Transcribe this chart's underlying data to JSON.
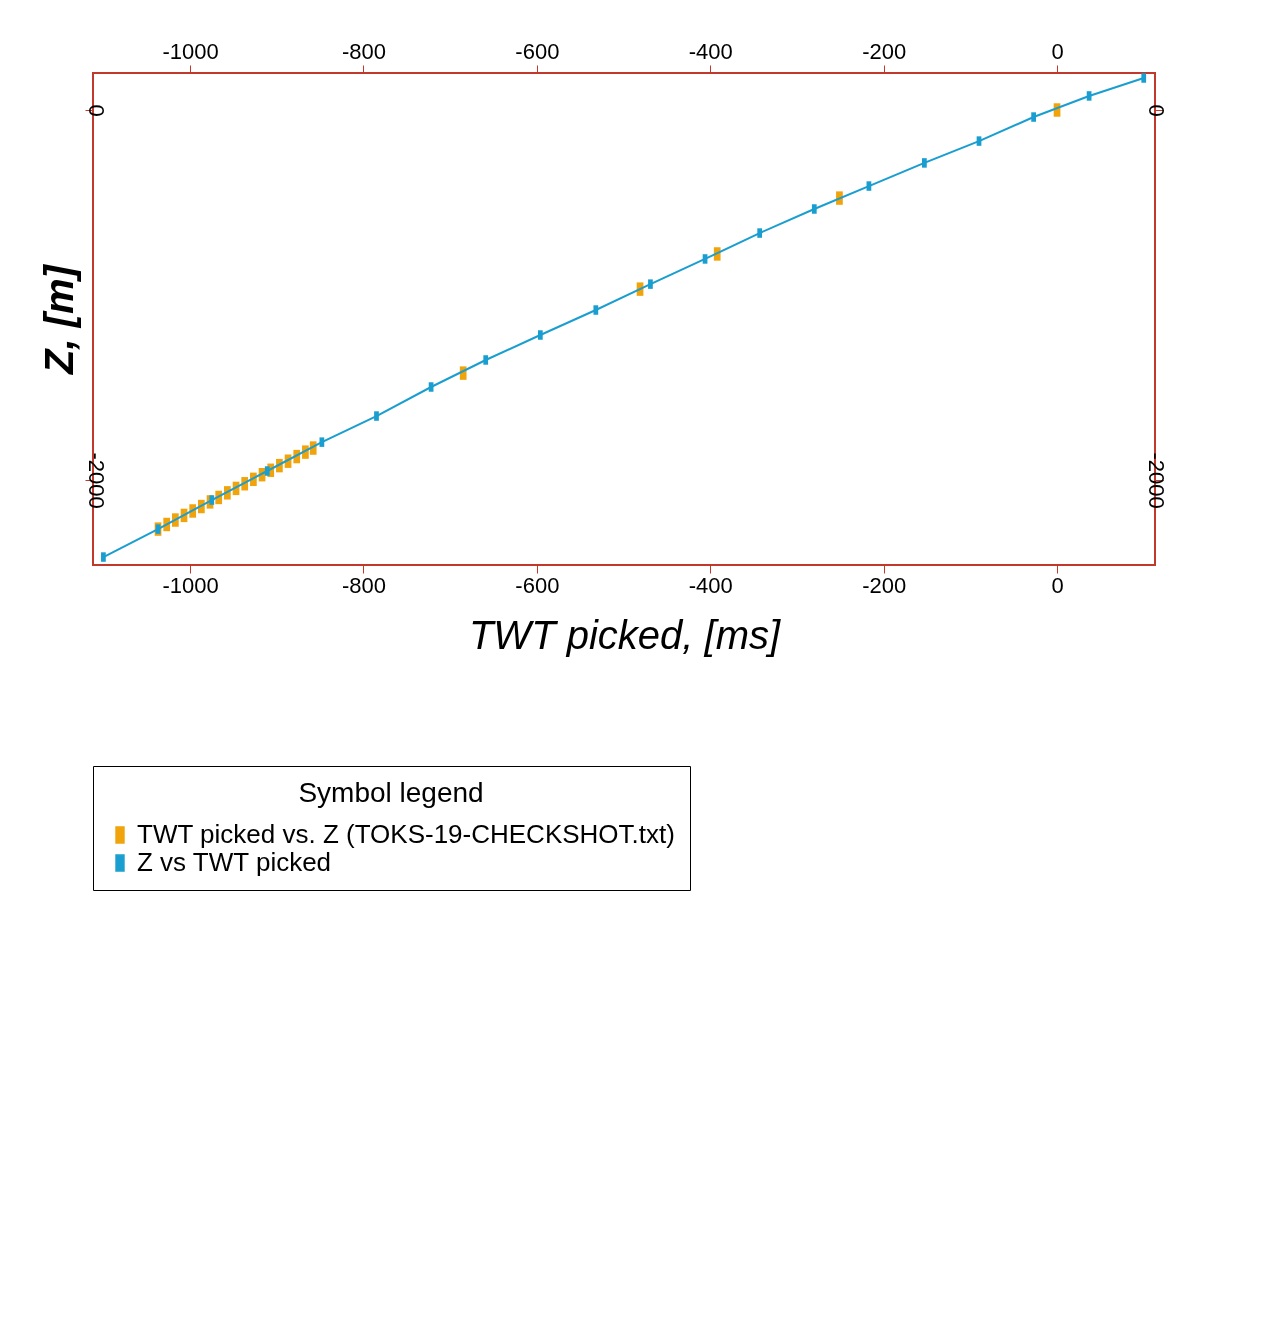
{
  "chart_data": {
    "type": "scatter",
    "xlabel": "TWT picked, [ms]",
    "ylabel": "Z,  [m]",
    "legend_title": "Symbol legend",
    "legend": "bottom",
    "grid": false,
    "marker": "square",
    "xlim": [
      -1112,
      113
    ],
    "ylim": [
      -2459,
      200
    ],
    "xticks": [
      -1000,
      -800,
      -600,
      -400,
      -200,
      0
    ],
    "yticks": [
      -2000,
      0
    ],
    "x2lim": [
      -1112,
      113
    ],
    "x2ticks": [
      -1000,
      -800,
      -600,
      -400,
      -200,
      0
    ],
    "y2lim": [
      -2459,
      200
    ],
    "y2ticks": [
      -2000,
      0
    ],
    "series": [
      {
        "name": "TWT picked vs. Z (TOKS-19-CHECKSHOT.txt)",
        "color": "#f0a30a",
        "x": [
          -1037,
          -1027,
          -1017,
          -1007,
          -997,
          -987,
          -977,
          -967,
          -957,
          -947,
          -937,
          -927,
          -917,
          -907,
          -897,
          -887,
          -877,
          -867,
          -858,
          -685,
          -481,
          -392,
          -251,
          0
        ],
        "values": [
          -2265,
          -2240,
          -2216,
          -2191,
          -2167,
          -2143,
          -2118,
          -2094,
          -2069,
          -2045,
          -2020,
          -1996,
          -1971,
          -1947,
          -1922,
          -1898,
          -1873,
          -1849,
          -1827,
          -1422,
          -968,
          -778,
          -476,
          0
        ]
      },
      {
        "name": "Z  vs  TWT  picked",
        "type": "line",
        "color": "#1a9ed0",
        "marker": "square",
        "axis": "y2",
        "x": [
          -1100,
          -1037,
          -975,
          -911,
          -848,
          -785,
          -722,
          -659,
          -596,
          -532,
          -469,
          -406,
          -343,
          -280,
          -217,
          -153,
          -90,
          -27,
          37,
          100
        ],
        "values": [
          -2416,
          -2265,
          -2108,
          -1951,
          -1795,
          -1654,
          -1497,
          -1351,
          -1216,
          -1081,
          -941,
          -805,
          -665,
          -535,
          -411,
          -286,
          -168,
          -38,
          76,
          173
        ]
      }
    ]
  }
}
